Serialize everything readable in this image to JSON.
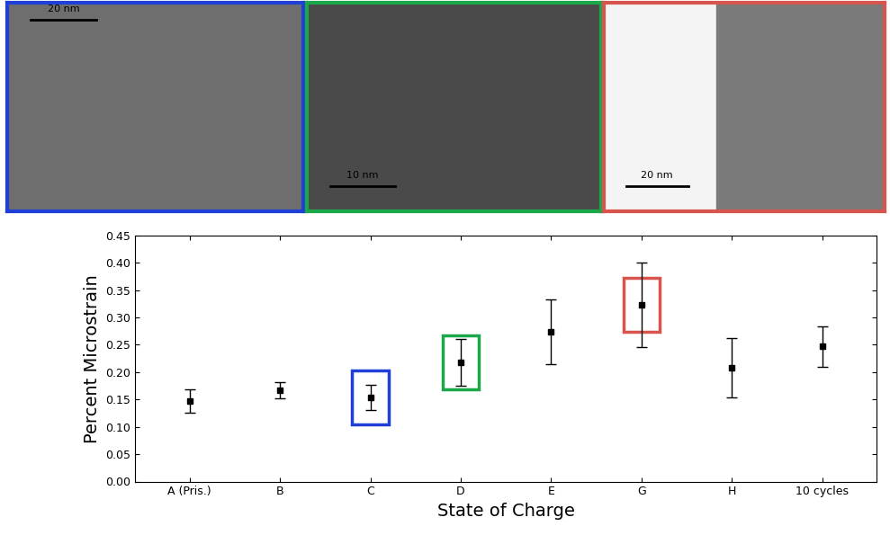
{
  "chart_data": {
    "type": "scatter",
    "x_label": "State of Charge",
    "y_label": "Percent Microstrain",
    "categories": [
      "A (Pris.)",
      "B",
      "C",
      "D",
      "E",
      "G",
      "H",
      "10 cycles"
    ],
    "values": [
      0.147,
      0.167,
      0.154,
      0.218,
      0.274,
      0.323,
      0.208,
      0.247
    ],
    "errors": [
      0.022,
      0.015,
      0.023,
      0.043,
      0.059,
      0.078,
      0.055,
      0.037
    ],
    "color": "#000000",
    "marker": "s",
    "ylim": [
      0,
      0.45
    ],
    "yticks": [
      {
        "value": 0,
        "label": "0.00"
      },
      {
        "value": 0.05,
        "label": "0.05"
      },
      {
        "value": 0.1,
        "label": "0.10"
      },
      {
        "value": 0.15,
        "label": "0.15"
      },
      {
        "value": 0.2,
        "label": "0.20"
      },
      {
        "value": 0.25,
        "label": "0.25"
      },
      {
        "value": 0.3,
        "label": "0.30"
      },
      {
        "value": 0.35,
        "label": "0.35"
      },
      {
        "value": 0.4,
        "label": "0.40"
      },
      {
        "value": 0.45,
        "label": "0.45"
      }
    ]
  },
  "panels": [
    {
      "scale_bar": "20 nm",
      "color": "#1f3fd6",
      "category": "C"
    },
    {
      "scale_bar": "10 nm",
      "color": "#1aa84a",
      "category": "D"
    },
    {
      "scale_bar": "20 nm",
      "color": "#d9544d",
      "category": "G"
    }
  ]
}
